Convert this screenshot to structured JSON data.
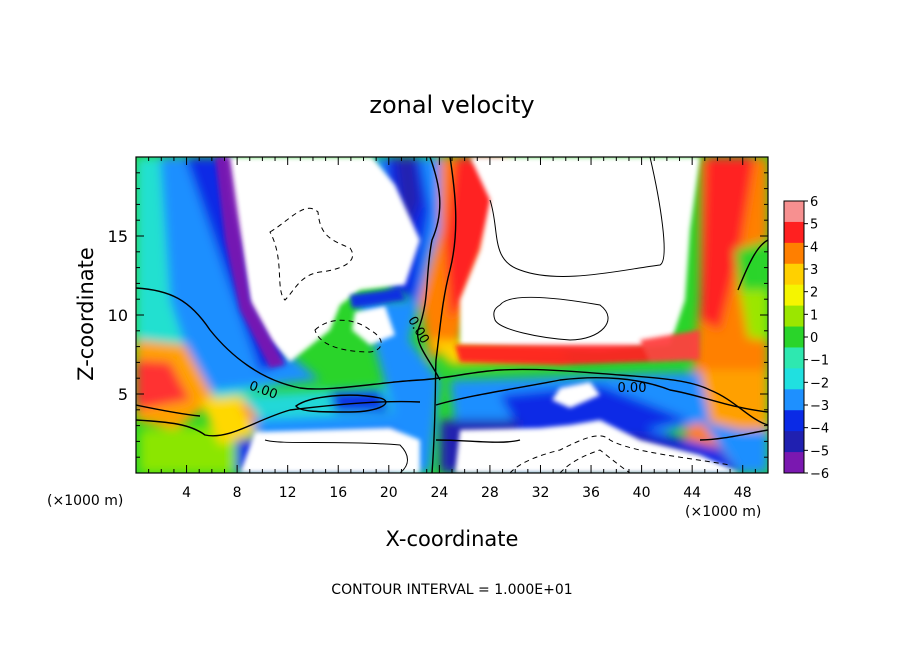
{
  "chart_data": {
    "type": "heatmap",
    "title": "zonal velocity",
    "xlabel": "X-coordinate",
    "ylabel": "Z-coordinate",
    "x_unit": "(×1000 m)",
    "x_unit_right": "(×1000 m)",
    "footer": "CONTOUR INTERVAL = 1.000E+01",
    "xlim": [
      0,
      50
    ],
    "ylim": [
      0,
      20
    ],
    "x_ticks": [
      4,
      8,
      12,
      16,
      20,
      24,
      28,
      32,
      36,
      40,
      44,
      48
    ],
    "y_ticks": [
      5,
      10,
      15
    ],
    "colorbar": {
      "min": -6,
      "max": 6,
      "labels": [
        "6",
        "5",
        "4",
        "3",
        "2",
        "1",
        "0",
        "−1",
        "−2",
        "−3",
        "−4",
        "−5",
        "−6"
      ],
      "colors": [
        "#f79090",
        "#ff2020",
        "#ff7f00",
        "#ffd000",
        "#f5f500",
        "#9be600",
        "#2ad42a",
        "#2ee8b0",
        "#20e0e0",
        "#1e90ff",
        "#0a2ae6",
        "#2020b0",
        "#7a18b0"
      ]
    },
    "contour_labels": [
      {
        "text": "0.00",
        "x": 10,
        "y": 5.3
      },
      {
        "text": "0.00",
        "x": 21.5,
        "y": 9.3
      },
      {
        "text": "0.00",
        "x": 39.5,
        "y": 5.3
      }
    ]
  }
}
